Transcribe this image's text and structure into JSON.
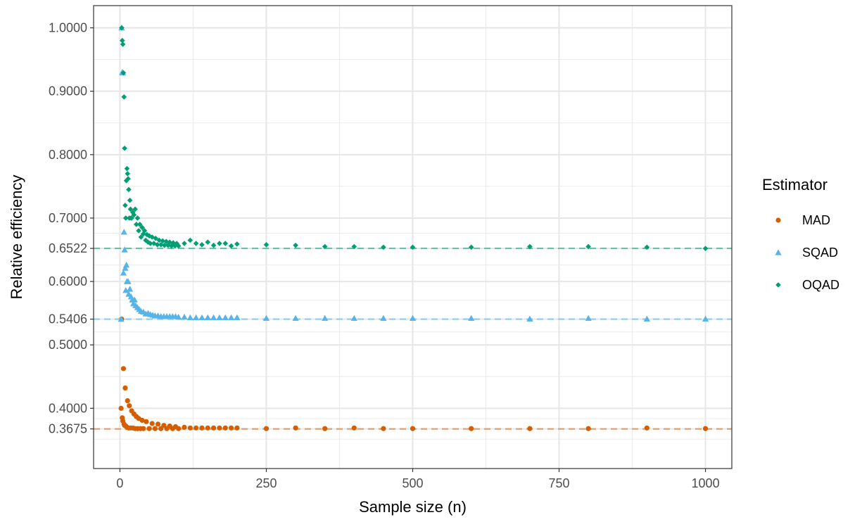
{
  "chart_data": {
    "type": "scatter",
    "xlabel": "Sample size (n)",
    "ylabel": "Relative efficiency",
    "xlim": [
      -45,
      1045
    ],
    "ylim": [
      0.305,
      1.035
    ],
    "x_ticks": [
      0,
      250,
      500,
      750,
      1000
    ],
    "x_tick_labels": [
      "0",
      "250",
      "500",
      "750",
      "1000"
    ],
    "y_ticks": [
      0.3675,
      0.4,
      0.5,
      0.5406,
      0.6,
      0.6522,
      0.7,
      0.8,
      0.9,
      1.0
    ],
    "y_tick_labels": [
      "0.3675",
      "0.4000",
      "0.5000",
      "0.5406",
      "0.6000",
      "0.6522",
      "0.7000",
      "0.8000",
      "0.9000",
      "1.0000"
    ],
    "grid": true,
    "legend": {
      "title": "Estimator",
      "position": "right"
    },
    "reference_lines": [
      {
        "y": 0.6522,
        "series": "OQAD",
        "style": "dashed"
      },
      {
        "y": 0.5406,
        "series": "SQAD",
        "style": "dashed"
      },
      {
        "y": 0.3675,
        "series": "MAD",
        "style": "dashed"
      }
    ],
    "series": [
      {
        "name": "MAD",
        "color": "#D55E00",
        "marker": "circle",
        "points": [
          [
            2,
            0.4
          ],
          [
            3,
            0.5406
          ],
          [
            4,
            0.385
          ],
          [
            5,
            0.38
          ],
          [
            6,
            0.4626
          ],
          [
            7,
            0.375
          ],
          [
            8,
            0.373
          ],
          [
            9,
            0.432
          ],
          [
            10,
            0.372
          ],
          [
            12,
            0.37
          ],
          [
            13,
            0.412
          ],
          [
            15,
            0.369
          ],
          [
            16,
            0.404
          ],
          [
            18,
            0.369
          ],
          [
            20,
            0.396
          ],
          [
            22,
            0.369
          ],
          [
            24,
            0.391
          ],
          [
            26,
            0.368
          ],
          [
            28,
            0.387
          ],
          [
            30,
            0.368
          ],
          [
            32,
            0.384
          ],
          [
            35,
            0.368
          ],
          [
            38,
            0.381
          ],
          [
            40,
            0.368
          ],
          [
            45,
            0.379
          ],
          [
            50,
            0.368
          ],
          [
            55,
            0.376
          ],
          [
            60,
            0.368
          ],
          [
            65,
            0.375
          ],
          [
            70,
            0.368
          ],
          [
            75,
            0.373
          ],
          [
            80,
            0.368
          ],
          [
            85,
            0.372
          ],
          [
            90,
            0.368
          ],
          [
            95,
            0.371
          ],
          [
            100,
            0.368
          ],
          [
            110,
            0.37
          ],
          [
            120,
            0.369
          ],
          [
            130,
            0.369
          ],
          [
            140,
            0.369
          ],
          [
            150,
            0.369
          ],
          [
            160,
            0.369
          ],
          [
            170,
            0.369
          ],
          [
            180,
            0.369
          ],
          [
            190,
            0.369
          ],
          [
            200,
            0.369
          ],
          [
            250,
            0.368
          ],
          [
            300,
            0.369
          ],
          [
            350,
            0.368
          ],
          [
            400,
            0.369
          ],
          [
            450,
            0.368
          ],
          [
            500,
            0.368
          ],
          [
            600,
            0.368
          ],
          [
            700,
            0.368
          ],
          [
            800,
            0.368
          ],
          [
            900,
            0.369
          ],
          [
            1000,
            0.368
          ]
        ]
      },
      {
        "name": "SQAD",
        "color": "#56B4E9",
        "marker": "triangle",
        "points": [
          [
            2,
            0.5406
          ],
          [
            3,
            1.0
          ],
          [
            4,
            0.93
          ],
          [
            5,
            0.929
          ],
          [
            6,
            0.6135
          ],
          [
            7,
            0.678
          ],
          [
            8,
            0.65
          ],
          [
            9,
            0.621
          ],
          [
            10,
            0.586
          ],
          [
            11,
            0.626
          ],
          [
            12,
            0.6
          ],
          [
            14,
            0.6
          ],
          [
            15,
            0.58
          ],
          [
            17,
            0.588
          ],
          [
            19,
            0.576
          ],
          [
            21,
            0.571
          ],
          [
            23,
            0.565
          ],
          [
            25,
            0.571
          ],
          [
            27,
            0.562
          ],
          [
            30,
            0.559
          ],
          [
            33,
            0.556
          ],
          [
            36,
            0.553
          ],
          [
            40,
            0.552
          ],
          [
            44,
            0.549
          ],
          [
            48,
            0.55
          ],
          [
            52,
            0.548
          ],
          [
            56,
            0.547
          ],
          [
            60,
            0.546
          ],
          [
            65,
            0.546
          ],
          [
            70,
            0.545
          ],
          [
            75,
            0.545
          ],
          [
            80,
            0.545
          ],
          [
            85,
            0.545
          ],
          [
            90,
            0.545
          ],
          [
            95,
            0.545
          ],
          [
            100,
            0.544
          ],
          [
            110,
            0.544
          ],
          [
            120,
            0.543
          ],
          [
            130,
            0.543
          ],
          [
            140,
            0.543
          ],
          [
            150,
            0.543
          ],
          [
            160,
            0.543
          ],
          [
            170,
            0.543
          ],
          [
            180,
            0.543
          ],
          [
            190,
            0.543
          ],
          [
            200,
            0.543
          ],
          [
            250,
            0.542
          ],
          [
            300,
            0.542
          ],
          [
            350,
            0.542
          ],
          [
            400,
            0.542
          ],
          [
            450,
            0.542
          ],
          [
            500,
            0.542
          ],
          [
            600,
            0.542
          ],
          [
            700,
            0.541
          ],
          [
            800,
            0.542
          ],
          [
            900,
            0.541
          ],
          [
            1000,
            0.541
          ]
        ]
      },
      {
        "name": "OQAD",
        "color": "#009E73",
        "marker": "diamond",
        "points": [
          [
            3,
            1.0
          ],
          [
            4,
            0.98
          ],
          [
            5,
            0.974
          ],
          [
            6,
            0.929
          ],
          [
            7,
            0.891
          ],
          [
            8,
            0.81
          ],
          [
            9,
            0.72
          ],
          [
            10,
            0.7
          ],
          [
            11,
            0.759
          ],
          [
            12,
            0.778
          ],
          [
            13,
            0.77
          ],
          [
            14,
            0.762
          ],
          [
            15,
            0.745
          ],
          [
            16,
            0.7
          ],
          [
            17,
            0.728
          ],
          [
            18,
            0.714
          ],
          [
            19,
            0.7
          ],
          [
            20,
            0.7
          ],
          [
            22,
            0.709
          ],
          [
            24,
            0.705
          ],
          [
            26,
            0.714
          ],
          [
            28,
            0.69
          ],
          [
            30,
            0.7
          ],
          [
            32,
            0.68
          ],
          [
            34,
            0.69
          ],
          [
            36,
            0.67
          ],
          [
            38,
            0.685
          ],
          [
            40,
            0.675
          ],
          [
            42,
            0.68
          ],
          [
            44,
            0.665
          ],
          [
            46,
            0.674
          ],
          [
            48,
            0.662
          ],
          [
            50,
            0.672
          ],
          [
            52,
            0.66
          ],
          [
            55,
            0.67
          ],
          [
            58,
            0.66
          ],
          [
            61,
            0.668
          ],
          [
            64,
            0.658
          ],
          [
            67,
            0.665
          ],
          [
            70,
            0.658
          ],
          [
            73,
            0.664
          ],
          [
            76,
            0.657
          ],
          [
            79,
            0.663
          ],
          [
            82,
            0.657
          ],
          [
            85,
            0.662
          ],
          [
            88,
            0.656
          ],
          [
            91,
            0.661
          ],
          [
            94,
            0.656
          ],
          [
            97,
            0.66
          ],
          [
            100,
            0.656
          ],
          [
            110,
            0.66
          ],
          [
            120,
            0.665
          ],
          [
            130,
            0.66
          ],
          [
            140,
            0.658
          ],
          [
            150,
            0.662
          ],
          [
            160,
            0.657
          ],
          [
            170,
            0.66
          ],
          [
            180,
            0.66
          ],
          [
            190,
            0.656
          ],
          [
            200,
            0.659
          ],
          [
            250,
            0.658
          ],
          [
            300,
            0.657
          ],
          [
            350,
            0.655
          ],
          [
            400,
            0.655
          ],
          [
            450,
            0.654
          ],
          [
            500,
            0.654
          ],
          [
            600,
            0.654
          ],
          [
            700,
            0.655
          ],
          [
            800,
            0.655
          ],
          [
            900,
            0.654
          ],
          [
            1000,
            0.652
          ]
        ]
      }
    ]
  }
}
